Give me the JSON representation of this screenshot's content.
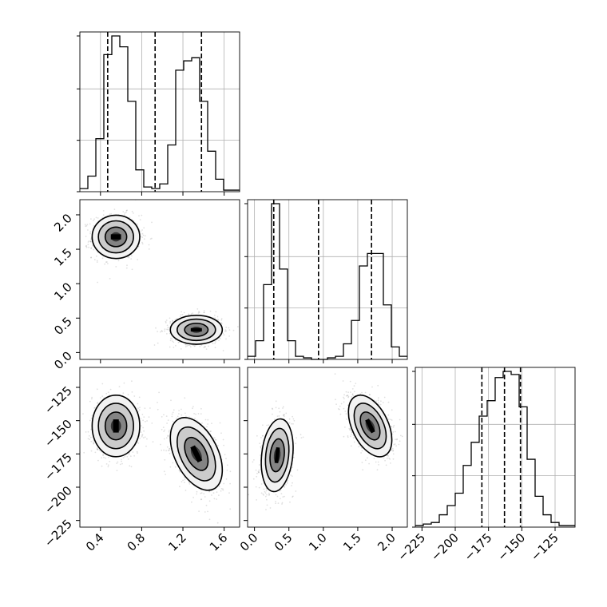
{
  "chart_data": {
    "type": "corner",
    "grid": true,
    "variables": [
      {
        "range": [
          0.2,
          1.75
        ],
        "ticks": [
          0.4,
          0.8,
          1.2,
          1.6
        ],
        "tick_labels": [
          "0.4",
          "0.8",
          "1.2",
          "1.6"
        ]
      },
      {
        "range": [
          -0.1,
          2.22
        ],
        "ticks": [
          0.0,
          0.5,
          1.0,
          1.5,
          2.0
        ],
        "tick_labels": [
          "0.0",
          "0.5",
          "1.0",
          "1.5",
          "2.0"
        ]
      },
      {
        "range": [
          -230,
          -110
        ],
        "ticks": [
          -225,
          -200,
          -175,
          -150,
          -125
        ],
        "tick_labels": [
          "−225",
          "−200",
          "−175",
          "−150",
          "−125"
        ]
      }
    ],
    "histograms": [
      {
        "variable": 0,
        "bin_edges": [
          0.2,
          0.2775,
          0.355,
          0.4325,
          0.51,
          0.5875,
          0.665,
          0.7425,
          0.82,
          0.8975,
          0.975,
          1.0525,
          1.13,
          1.2075,
          1.285,
          1.3625,
          1.44,
          1.5175,
          1.595,
          1.6725,
          1.75
        ],
        "counts": [
          2,
          10,
          34,
          88,
          100,
          93,
          58,
          14,
          3,
          2,
          5,
          30,
          78,
          84,
          86,
          58,
          26,
          8,
          1,
          1
        ],
        "quantiles": [
          0.47,
          0.93,
          1.38
        ]
      },
      {
        "variable": 1,
        "bin_edges": [
          -0.1,
          0.016,
          0.132,
          0.248,
          0.364,
          0.48,
          0.596,
          0.712,
          0.828,
          0.944,
          1.06,
          1.176,
          1.292,
          1.408,
          1.524,
          1.64,
          1.756,
          1.872,
          1.988,
          2.104,
          2.22
        ],
        "counts": [
          2,
          12,
          48,
          100,
          58,
          12,
          2,
          1,
          0,
          0,
          1,
          2,
          10,
          25,
          60,
          68,
          68,
          35,
          8,
          2
        ],
        "quantiles": [
          0.28,
          0.93,
          1.7
        ]
      },
      {
        "variable": 2,
        "bin_edges": [
          -230,
          -224,
          -218,
          -212,
          -206,
          -200,
          -194,
          -188,
          -182,
          -176,
          -170,
          -164,
          -158,
          -152,
          -146,
          -140,
          -134,
          -128,
          -122,
          -116,
          -110
        ],
        "counts": [
          1,
          2,
          3,
          8,
          14,
          22,
          40,
          55,
          72,
          82,
          97,
          101,
          99,
          78,
          44,
          20,
          8,
          3,
          1,
          1
        ],
        "quantiles": [
          -180,
          -163,
          -151
        ]
      }
    ],
    "pairs": [
      {
        "x_var": 0,
        "y_var": 1,
        "clusters": [
          {
            "center": [
              0.55,
              1.68
            ],
            "sigma": [
              0.11,
              0.15
            ],
            "rho": 0.0
          },
          {
            "center": [
              1.33,
              0.33
            ],
            "sigma": [
              0.12,
              0.1
            ],
            "rho": 0.0
          }
        ]
      },
      {
        "x_var": 0,
        "y_var": 2,
        "clusters": [
          {
            "center": [
              0.55,
              -154
            ],
            "sigma": [
              0.11,
              11
            ],
            "rho": 0.0
          },
          {
            "center": [
              1.33,
              -175
            ],
            "sigma": [
              0.12,
              13
            ],
            "rho": -0.45
          }
        ]
      },
      {
        "x_var": 1,
        "y_var": 2,
        "clusters": [
          {
            "center": [
              0.33,
              -176
            ],
            "sigma": [
              0.11,
              13
            ],
            "rho": 0.2
          },
          {
            "center": [
              1.68,
              -154
            ],
            "sigma": [
              0.15,
              11
            ],
            "rho": -0.45
          }
        ]
      }
    ]
  }
}
